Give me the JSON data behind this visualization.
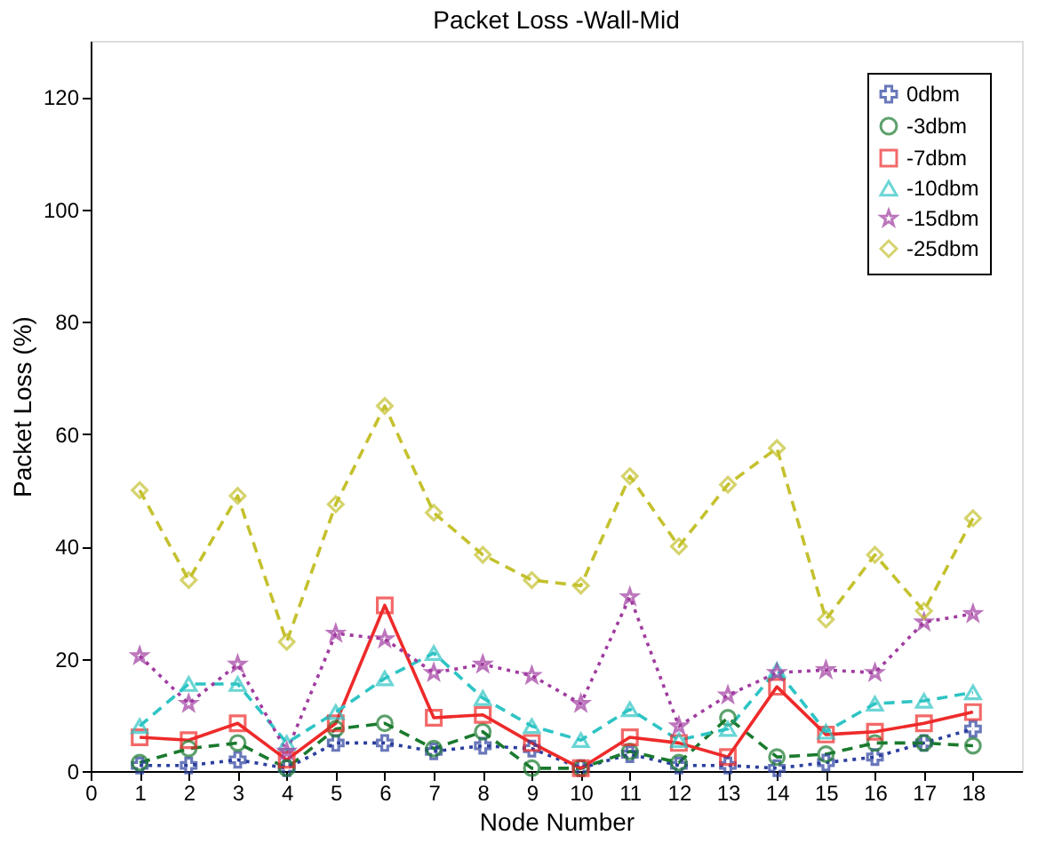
{
  "chart_data": {
    "type": "line",
    "title": "Packet Loss -Wall-Mid",
    "xlabel": "Node Number",
    "ylabel": "Packet Loss (%)",
    "x": [
      1,
      2,
      3,
      4,
      5,
      6,
      7,
      8,
      9,
      10,
      11,
      12,
      13,
      14,
      15,
      16,
      17,
      18
    ],
    "xlim": [
      0,
      19
    ],
    "xticks": [
      0,
      1,
      2,
      3,
      4,
      5,
      6,
      7,
      8,
      9,
      10,
      11,
      12,
      13,
      14,
      15,
      16,
      17,
      18
    ],
    "ylim": [
      0,
      130
    ],
    "yticks": [
      0,
      20,
      40,
      60,
      80,
      100,
      120
    ],
    "grid": false,
    "legend": "top right",
    "series": [
      {
        "name": "0dbm",
        "color": "#2b3f9e",
        "marker": "cross",
        "line_style": "dotted",
        "values": [
          1,
          1,
          2,
          0.5,
          5,
          5,
          3.5,
          4.5,
          4,
          0.5,
          3,
          1,
          1,
          0.5,
          1.5,
          2.5,
          5,
          7.5
        ]
      },
      {
        "name": "-3dbm",
        "color": "#1a7a2e",
        "marker": "circle",
        "line_style": "dashed",
        "values": [
          1.5,
          4,
          5,
          0.5,
          7.5,
          8.5,
          4,
          7,
          0.5,
          0.5,
          3.5,
          1.5,
          9.5,
          2.5,
          3,
          5,
          5,
          4.5
        ]
      },
      {
        "name": "-7dbm",
        "color": "#ee2a2a",
        "marker": "square",
        "line_style": "solid",
        "values": [
          6,
          5.5,
          8.5,
          2,
          8.5,
          29.5,
          9.5,
          10,
          5,
          0.5,
          6,
          5,
          2.5,
          15,
          6.5,
          7,
          8.5,
          10.5
        ]
      },
      {
        "name": "-10dbm",
        "color": "#2ec4c4",
        "marker": "triangle",
        "line_style": "dashed",
        "values": [
          8,
          15.5,
          15.5,
          5,
          10.5,
          16.5,
          21,
          13,
          8,
          5.5,
          11,
          5.5,
          7.5,
          18,
          7,
          12,
          12.5,
          14
        ]
      },
      {
        "name": "-15dbm",
        "color": "#a03ca0",
        "marker": "star",
        "line_style": "dotted",
        "values": [
          20.5,
          12,
          19,
          3.5,
          24.5,
          23.5,
          17.5,
          19,
          17,
          12,
          31,
          8,
          13.5,
          17.5,
          18,
          17.5,
          26.5,
          28
        ]
      },
      {
        "name": "-25dbm",
        "color": "#c4c12e",
        "marker": "diamond",
        "line_style": "dashed",
        "values": [
          50,
          34,
          49,
          23,
          47.5,
          65,
          46,
          38.5,
          34,
          33,
          52.5,
          40,
          51,
          57.5,
          27,
          38.5,
          28.5,
          45
        ]
      }
    ]
  }
}
